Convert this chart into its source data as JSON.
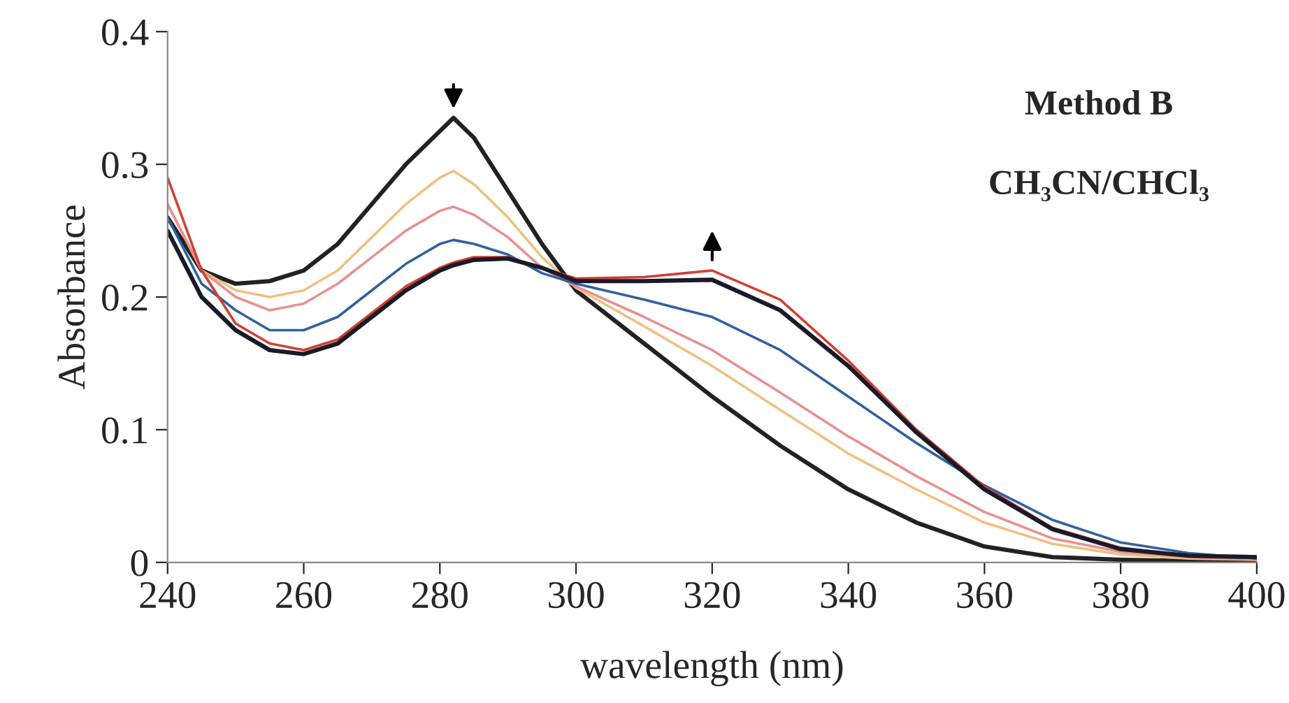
{
  "chart_data": {
    "type": "line",
    "xlabel": "wavelength (nm)",
    "ylabel": "Absorbance",
    "x": [
      240,
      245,
      250,
      255,
      260,
      265,
      270,
      275,
      280,
      282,
      285,
      290,
      295,
      300,
      310,
      320,
      330,
      340,
      350,
      360,
      370,
      380,
      390,
      400
    ],
    "xlim": [
      240,
      400
    ],
    "xticks": [
      240,
      260,
      280,
      300,
      320,
      340,
      360,
      380,
      400
    ],
    "ylim": [
      0,
      0.4
    ],
    "yticks": [
      0,
      0.1,
      0.2,
      0.3,
      0.4
    ],
    "grid": false,
    "legend": false,
    "marker": "none",
    "line_style": "solid",
    "annotations": [
      "Method B",
      "CH₃CN/CHCl₃"
    ],
    "series": [
      {
        "color": "#222222",
        "values": [
          0.26,
          0.22,
          0.21,
          0.212,
          0.22,
          0.24,
          0.27,
          0.3,
          0.325,
          0.335,
          0.32,
          0.28,
          0.24,
          0.205,
          0.165,
          0.125,
          0.088,
          0.055,
          0.03,
          0.012,
          0.004,
          0.002,
          0.001,
          0.002
        ]
      },
      {
        "color": "#f0c080",
        "values": [
          0.27,
          0.22,
          0.205,
          0.2,
          0.205,
          0.22,
          0.245,
          0.27,
          0.29,
          0.295,
          0.285,
          0.26,
          0.23,
          0.207,
          0.178,
          0.148,
          0.115,
          0.082,
          0.055,
          0.03,
          0.014,
          0.006,
          0.003,
          0.002
        ]
      },
      {
        "color": "#e89090",
        "values": [
          0.27,
          0.22,
          0.2,
          0.19,
          0.195,
          0.21,
          0.23,
          0.25,
          0.265,
          0.268,
          0.262,
          0.245,
          0.222,
          0.208,
          0.185,
          0.16,
          0.128,
          0.095,
          0.065,
          0.038,
          0.018,
          0.008,
          0.004,
          0.002
        ]
      },
      {
        "color": "#3060a0",
        "values": [
          0.26,
          0.21,
          0.19,
          0.175,
          0.175,
          0.185,
          0.205,
          0.225,
          0.24,
          0.243,
          0.24,
          0.232,
          0.218,
          0.21,
          0.198,
          0.185,
          0.16,
          0.125,
          0.09,
          0.058,
          0.032,
          0.015,
          0.007,
          0.003
        ]
      },
      {
        "color": "#d04030",
        "values": [
          0.29,
          0.22,
          0.18,
          0.165,
          0.16,
          0.168,
          0.188,
          0.208,
          0.222,
          0.226,
          0.23,
          0.23,
          0.222,
          0.214,
          0.215,
          0.22,
          0.198,
          0.152,
          0.1,
          0.057,
          0.026,
          0.011,
          0.005,
          0.004
        ]
      },
      {
        "color": "#1a1a2a",
        "values": [
          0.25,
          0.2,
          0.175,
          0.16,
          0.157,
          0.165,
          0.185,
          0.205,
          0.22,
          0.224,
          0.228,
          0.229,
          0.222,
          0.212,
          0.212,
          0.213,
          0.19,
          0.148,
          0.098,
          0.055,
          0.025,
          0.01,
          0.005,
          0.004
        ]
      }
    ]
  }
}
